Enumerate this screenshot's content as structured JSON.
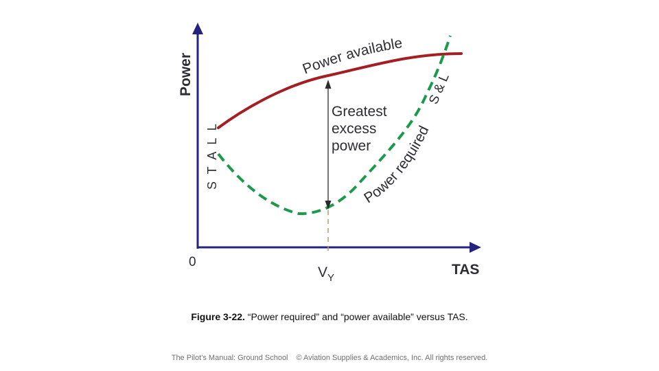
{
  "diagram": {
    "y_axis_label": "Power",
    "x_axis_label": "TAS",
    "origin_label": "0",
    "vy_label_main": "V",
    "vy_label_sub": "Y",
    "stall_label": "S T A L L",
    "power_available_label": "Power available",
    "power_required_label": "Power required",
    "sl_label": "S & L",
    "greatest_excess_lines": [
      "Greatest",
      "excess",
      "power"
    ],
    "colors": {
      "axes": "#24237e",
      "power_available": "#a31f24",
      "power_required": "#1a9a4a",
      "vy_arrow": "#2b2b2b",
      "vy_dashed": "#b89a6a",
      "text": "#2d2d33"
    }
  },
  "caption": {
    "figure_number": "Figure 3-22.",
    "text": " “Power required” and “power available” versus TAS."
  },
  "footer": {
    "left": "The Pilot’s Manual: Ground School",
    "right": "© Aviation Supplies & Academics, Inc. All rights reserved."
  }
}
